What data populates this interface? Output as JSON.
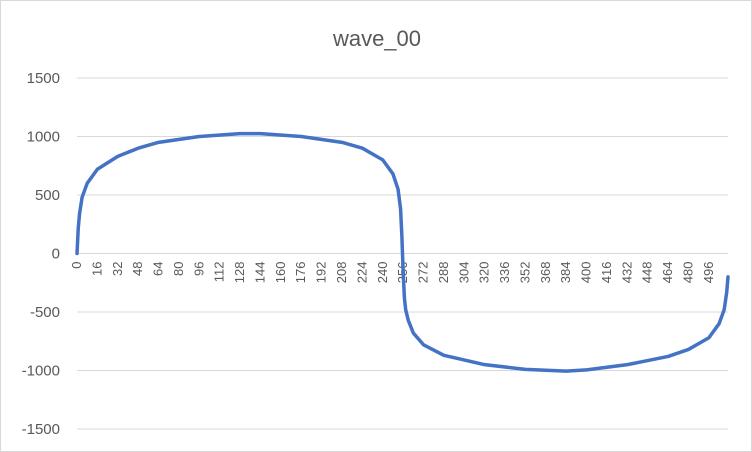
{
  "chart_data": {
    "type": "line",
    "title": "wave_00",
    "xlabel": "",
    "ylabel": "",
    "ylim": [
      -1500,
      1500
    ],
    "yticks": [
      1500,
      1000,
      500,
      0,
      -500,
      -1000,
      -1500
    ],
    "xlim": [
      0,
      511
    ],
    "xticks": [
      0,
      16,
      32,
      48,
      64,
      80,
      96,
      112,
      128,
      144,
      160,
      176,
      192,
      208,
      224,
      240,
      256,
      272,
      288,
      304,
      320,
      336,
      352,
      368,
      384,
      400,
      416,
      432,
      448,
      464,
      480,
      496
    ],
    "grid": true,
    "legend": "none",
    "series": [
      {
        "color": "#4472c4",
        "x": [
          0,
          1,
          2,
          4,
          8,
          16,
          32,
          48,
          64,
          96,
          128,
          144,
          176,
          208,
          224,
          240,
          248,
          252,
          254,
          255,
          256,
          257,
          258,
          260,
          264,
          272,
          288,
          320,
          352,
          384,
          400,
          432,
          464,
          480,
          496,
          504,
          508,
          510,
          511
        ],
        "y": [
          0,
          220,
          340,
          480,
          600,
          720,
          830,
          900,
          950,
          1000,
          1025,
          1025,
          1000,
          950,
          900,
          800,
          680,
          550,
          380,
          150,
          -150,
          -380,
          -480,
          -570,
          -680,
          -780,
          -870,
          -950,
          -990,
          -1005,
          -995,
          -950,
          -880,
          -820,
          -720,
          -600,
          -480,
          -330,
          -200
        ]
      }
    ]
  }
}
